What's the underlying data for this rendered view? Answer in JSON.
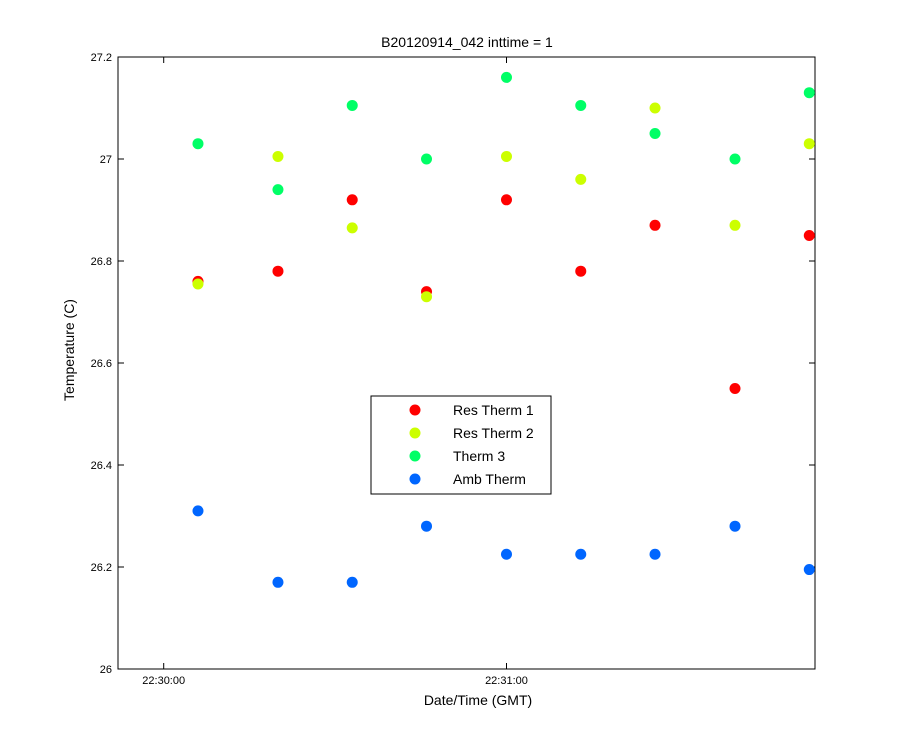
{
  "chart_data": {
    "type": "scatter",
    "title": "B20120914_042 inttime = 1",
    "xlabel": "Date/Time (GMT)",
    "ylabel": "Temperature (C)",
    "x_unit": "time",
    "xlim": [
      "22:29:52",
      "22:31:54"
    ],
    "ylim": [
      26,
      27.2
    ],
    "x_ticks": [
      {
        "value": "22:30:00",
        "label": "22:30:00"
      },
      {
        "value": "22:31:00",
        "label": "22:31:00"
      }
    ],
    "y_ticks": [
      {
        "value": 26,
        "label": "26"
      },
      {
        "value": 26.2,
        "label": "26.2"
      },
      {
        "value": 26.4,
        "label": "26.4"
      },
      {
        "value": 26.6,
        "label": "26.6"
      },
      {
        "value": 26.8,
        "label": "26.8"
      },
      {
        "value": 27,
        "label": "27"
      },
      {
        "value": 27.2,
        "label": "27.2"
      }
    ],
    "x": [
      "22:30:06",
      "22:30:20",
      "22:30:33",
      "22:30:46",
      "22:31:00",
      "22:31:13",
      "22:31:26",
      "22:31:40",
      "22:31:53"
    ],
    "series": [
      {
        "name": "Res Therm 1",
        "color": "#ff0000",
        "values": [
          26.76,
          26.78,
          26.92,
          26.74,
          26.92,
          26.78,
          26.87,
          26.55,
          26.85
        ]
      },
      {
        "name": "Res Therm 2",
        "color": "#ccff00",
        "values": [
          26.755,
          27.005,
          26.865,
          26.73,
          27.005,
          26.96,
          27.1,
          26.87,
          27.03
        ]
      },
      {
        "name": "Therm 3",
        "color": "#00ff66",
        "values": [
          27.03,
          26.94,
          27.105,
          27.0,
          27.16,
          27.105,
          27.05,
          27.0,
          27.13
        ]
      },
      {
        "name": "Amb Therm",
        "color": "#0066ff",
        "values": [
          26.31,
          26.17,
          26.17,
          26.28,
          26.225,
          26.225,
          26.225,
          26.28,
          26.195
        ]
      }
    ],
    "grid": false,
    "legend_position": "center"
  }
}
